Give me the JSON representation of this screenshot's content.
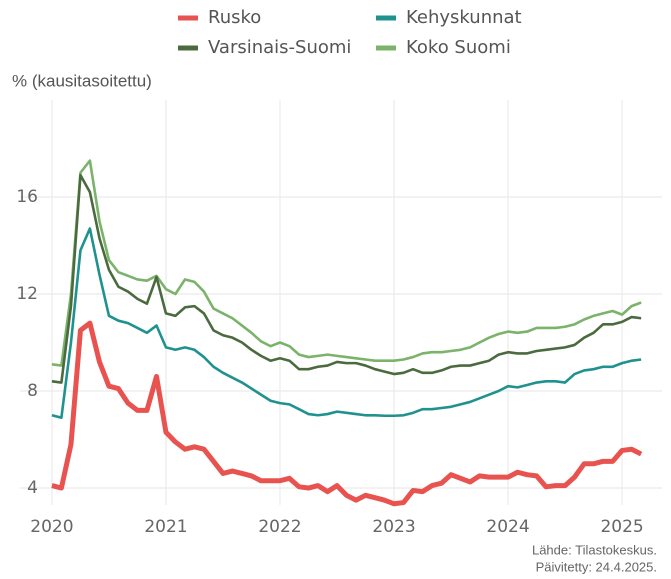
{
  "chart_data": {
    "type": "line",
    "y_label": "% (kausitasoitettu)",
    "source": [
      "Lähde: Tilastokeskus.",
      "Päivitetty: 24.4.2025."
    ],
    "x": [
      2020,
      2020.083,
      2020.167,
      2020.25,
      2020.333,
      2020.417,
      2020.5,
      2020.583,
      2020.667,
      2020.75,
      2020.833,
      2020.917,
      2021,
      2021.083,
      2021.167,
      2021.25,
      2021.333,
      2021.417,
      2021.5,
      2021.583,
      2021.667,
      2021.75,
      2021.833,
      2021.917,
      2022,
      2022.083,
      2022.167,
      2022.25,
      2022.333,
      2022.417,
      2022.5,
      2022.583,
      2022.667,
      2022.75,
      2022.833,
      2022.917,
      2023,
      2023.083,
      2023.167,
      2023.25,
      2023.333,
      2023.417,
      2023.5,
      2023.583,
      2023.667,
      2023.75,
      2023.833,
      2023.917,
      2024,
      2024.083,
      2024.167,
      2024.25,
      2024.333,
      2024.417,
      2024.5,
      2024.583,
      2024.667,
      2024.75,
      2024.833,
      2024.917,
      2025,
      2025.083,
      2025.167
    ],
    "series": [
      {
        "name": "Rusko",
        "color": "#e8524f",
        "values": [
          4.1,
          4.0,
          5.8,
          10.5,
          10.8,
          9.2,
          8.2,
          8.1,
          7.5,
          7.2,
          7.2,
          8.6,
          6.3,
          5.9,
          5.6,
          5.7,
          5.6,
          5.1,
          4.6,
          4.7,
          4.6,
          4.5,
          4.3,
          4.3,
          4.3,
          4.4,
          4.05,
          4.0,
          4.1,
          3.85,
          4.1,
          3.7,
          3.5,
          3.7,
          3.6,
          3.5,
          3.35,
          3.4,
          3.9,
          3.85,
          4.1,
          4.2,
          4.55,
          4.4,
          4.25,
          4.5,
          4.45,
          4.45,
          4.45,
          4.65,
          4.55,
          4.5,
          4.05,
          4.1,
          4.1,
          4.45,
          5.0,
          5.0,
          5.1,
          5.1,
          5.55,
          5.6,
          5.4
        ]
      },
      {
        "name": "Kehyskunnat",
        "color": "#1f9290",
        "values": [
          7.0,
          6.9,
          10.0,
          13.8,
          14.7,
          12.8,
          11.1,
          10.9,
          10.8,
          10.6,
          10.4,
          10.7,
          9.8,
          9.7,
          9.8,
          9.7,
          9.4,
          9.0,
          8.75,
          8.55,
          8.35,
          8.1,
          7.85,
          7.6,
          7.5,
          7.45,
          7.25,
          7.05,
          7.0,
          7.05,
          7.15,
          7.1,
          7.05,
          7.0,
          7.0,
          6.98,
          6.98,
          7.0,
          7.1,
          7.25,
          7.25,
          7.3,
          7.35,
          7.45,
          7.55,
          7.7,
          7.85,
          8.0,
          8.2,
          8.15,
          8.25,
          8.35,
          8.4,
          8.4,
          8.35,
          8.7,
          8.85,
          8.9,
          9.0,
          9.0,
          9.15,
          9.25,
          9.3
        ]
      },
      {
        "name": "Varsinais-Suomi",
        "color": "#4b6b3e",
        "values": [
          8.4,
          8.35,
          11.5,
          16.9,
          16.2,
          14.3,
          13.0,
          12.3,
          12.1,
          11.8,
          11.6,
          12.7,
          11.2,
          11.1,
          11.45,
          11.5,
          11.2,
          10.5,
          10.3,
          10.2,
          10.0,
          9.7,
          9.45,
          9.25,
          9.35,
          9.25,
          8.9,
          8.9,
          9.0,
          9.05,
          9.2,
          9.15,
          9.15,
          9.05,
          8.9,
          8.8,
          8.7,
          8.75,
          8.9,
          8.75,
          8.75,
          8.85,
          9.0,
          9.05,
          9.05,
          9.15,
          9.25,
          9.5,
          9.6,
          9.55,
          9.55,
          9.65,
          9.7,
          9.75,
          9.8,
          9.9,
          10.2,
          10.4,
          10.75,
          10.75,
          10.85,
          11.05,
          11.0
        ]
      },
      {
        "name": "Koko Suomi",
        "color": "#7bb36a",
        "values": [
          9.1,
          9.05,
          12.0,
          17.0,
          17.5,
          15.0,
          13.4,
          12.9,
          12.75,
          12.6,
          12.55,
          12.75,
          12.2,
          12.0,
          12.6,
          12.5,
          12.1,
          11.4,
          11.2,
          11.0,
          10.7,
          10.4,
          10.05,
          9.85,
          10.0,
          9.85,
          9.5,
          9.4,
          9.45,
          9.5,
          9.45,
          9.4,
          9.35,
          9.3,
          9.25,
          9.25,
          9.25,
          9.3,
          9.4,
          9.55,
          9.6,
          9.6,
          9.65,
          9.7,
          9.8,
          10.0,
          10.2,
          10.35,
          10.45,
          10.4,
          10.45,
          10.6,
          10.6,
          10.6,
          10.65,
          10.75,
          10.95,
          11.1,
          11.2,
          11.3,
          11.15,
          11.5,
          11.65
        ]
      }
    ],
    "xlim": [
      2019.72,
      2025.35
    ],
    "xticks": [
      2020,
      2021,
      2022,
      2023,
      2024,
      2025
    ],
    "ylim": [
      3.3,
      20
    ],
    "yticks": [
      4,
      8,
      12,
      16
    ],
    "grid": true,
    "legend": "top"
  }
}
